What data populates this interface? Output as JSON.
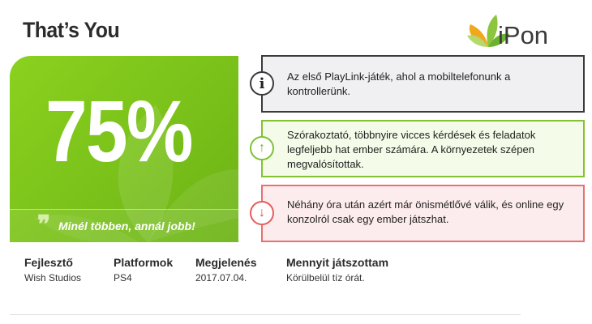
{
  "header": {
    "title": "That’s You",
    "logo_text": "iPon"
  },
  "score": {
    "value": "75%",
    "quote_mark": "❞",
    "quote": "Minél többen, annál jobb!",
    "color": "#7ac11a"
  },
  "cards": {
    "info": {
      "icon": "info-icon",
      "symbol": "i",
      "text_lines": [
        "Az első PlayLink-játék, ahol a mobiltelefonunk a",
        "kontrollerünk."
      ]
    },
    "pro": {
      "icon": "arrow-up-icon",
      "symbol": "↑",
      "text_lines": [
        "Szórakoztató, többnyire vicces kérdések és feladatok",
        "legfeljebb hat ember számára. A környezetek szépen",
        "megvalósítottak."
      ]
    },
    "con": {
      "icon": "arrow-down-icon",
      "symbol": "↓",
      "text_lines": [
        "Néhány óra után azért már önismétlővé válik, és online egy",
        "konzolról csak egy ember játszhat."
      ]
    }
  },
  "meta": {
    "developer": {
      "label": "Fejlesztő",
      "value": "Wish Studios"
    },
    "platforms": {
      "label": "Platformok",
      "value": "PS4"
    },
    "release": {
      "label": "Megjelenés",
      "value": "2017.07.04."
    },
    "played": {
      "label": "Mennyit játszottam",
      "value": "Körülbelül tíz órát."
    }
  },
  "colors": {
    "green": "#84c233",
    "red": "#e57171",
    "dark": "#3a3a3a"
  }
}
